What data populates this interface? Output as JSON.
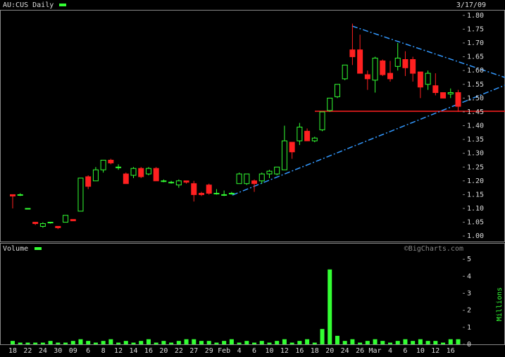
{
  "chart_data": [
    {
      "type": "candlestick",
      "title": "AU:CUS Daily",
      "subtitle": "3/17/09",
      "up_color": "#33ff33",
      "down_color": "#ff2020",
      "ylim": [
        0.98,
        1.82
      ],
      "yticks": [
        {
          "value": 1.0,
          "label": "1.00"
        },
        {
          "value": 1.05,
          "label": "1.05"
        },
        {
          "value": 1.1,
          "label": "1.10"
        },
        {
          "value": 1.15,
          "label": "1.15"
        },
        {
          "value": 1.2,
          "label": "1.20"
        },
        {
          "value": 1.25,
          "label": "1.25"
        },
        {
          "value": 1.3,
          "label": "1.30"
        },
        {
          "value": 1.35,
          "label": "1.35"
        },
        {
          "value": 1.4,
          "label": "1.40"
        },
        {
          "value": 1.45,
          "label": "1.45"
        },
        {
          "value": 1.5,
          "label": "1.50"
        },
        {
          "value": 1.55,
          "label": "1.55"
        },
        {
          "value": 1.6,
          "label": "1.60"
        },
        {
          "value": 1.65,
          "label": "1.65"
        },
        {
          "value": 1.7,
          "label": "1.70"
        },
        {
          "value": 1.75,
          "label": "1.75"
        },
        {
          "value": 1.8,
          "label": "1.80"
        }
      ],
      "open": [
        1.15,
        1.15,
        1.1,
        1.05,
        1.035,
        1.05,
        1.035,
        1.05,
        1.06,
        1.09,
        1.215,
        1.2,
        1.24,
        1.275,
        1.25,
        1.225,
        1.22,
        1.245,
        1.225,
        1.245,
        1.2,
        1.195,
        1.185,
        1.2,
        1.19,
        1.155,
        1.185,
        1.155,
        1.15,
        1.155,
        1.19,
        1.19,
        1.2,
        1.2,
        1.225,
        1.225,
        1.24,
        1.34,
        1.345,
        1.38,
        1.345,
        1.385,
        1.455,
        1.505,
        1.57,
        1.675,
        1.675,
        1.585,
        1.565,
        1.635,
        1.59,
        1.615,
        1.64,
        1.64,
        1.595,
        1.55,
        1.545,
        1.52,
        1.515,
        1.52
      ],
      "high": [
        1.15,
        1.155,
        1.1,
        1.05,
        1.05,
        1.05,
        1.035,
        1.075,
        1.06,
        1.21,
        1.22,
        1.25,
        1.275,
        1.28,
        1.26,
        1.23,
        1.25,
        1.25,
        1.25,
        1.25,
        1.205,
        1.2,
        1.205,
        1.2,
        1.2,
        1.16,
        1.19,
        1.17,
        1.165,
        1.16,
        1.23,
        1.225,
        1.205,
        1.23,
        1.24,
        1.25,
        1.4,
        1.34,
        1.41,
        1.39,
        1.36,
        1.45,
        1.5,
        1.55,
        1.62,
        1.77,
        1.73,
        1.6,
        1.65,
        1.64,
        1.635,
        1.7,
        1.67,
        1.65,
        1.595,
        1.6,
        1.59,
        1.52,
        1.535,
        1.53
      ],
      "low": [
        1.1,
        1.145,
        1.1,
        1.04,
        1.03,
        1.045,
        1.025,
        1.05,
        1.055,
        1.09,
        1.17,
        1.2,
        1.23,
        1.26,
        1.24,
        1.19,
        1.21,
        1.21,
        1.22,
        1.2,
        1.195,
        1.19,
        1.175,
        1.19,
        1.125,
        1.145,
        1.15,
        1.15,
        1.145,
        1.15,
        1.19,
        1.185,
        1.16,
        1.19,
        1.21,
        1.22,
        1.24,
        1.28,
        1.33,
        1.345,
        1.34,
        1.38,
        1.45,
        1.5,
        1.565,
        1.62,
        1.59,
        1.53,
        1.52,
        1.58,
        1.56,
        1.6,
        1.58,
        1.56,
        1.5,
        1.53,
        1.51,
        1.5,
        1.5,
        1.45
      ],
      "close": [
        1.145,
        1.15,
        1.1,
        1.045,
        1.045,
        1.05,
        1.03,
        1.075,
        1.055,
        1.21,
        1.18,
        1.24,
        1.275,
        1.265,
        1.25,
        1.19,
        1.245,
        1.215,
        1.245,
        1.2,
        1.2,
        1.195,
        1.2,
        1.195,
        1.15,
        1.15,
        1.155,
        1.155,
        1.15,
        1.155,
        1.225,
        1.225,
        1.19,
        1.225,
        1.235,
        1.25,
        1.345,
        1.305,
        1.395,
        1.345,
        1.355,
        1.45,
        1.5,
        1.55,
        1.62,
        1.65,
        1.59,
        1.57,
        1.645,
        1.585,
        1.57,
        1.645,
        1.61,
        1.59,
        1.54,
        1.59,
        1.52,
        1.5,
        1.52,
        1.47
      ],
      "watermark": "©BigCharts.com"
    },
    {
      "type": "bar",
      "title": "Volume",
      "y_label": "Millions",
      "color": "#33ff33",
      "categories": [
        "18",
        null,
        "22",
        null,
        "24",
        null,
        "30",
        null,
        "09",
        null,
        "6",
        null,
        "8",
        null,
        "12",
        null,
        "14",
        null,
        "16",
        null,
        "20",
        null,
        "22",
        null,
        "27",
        null,
        "29",
        null,
        "Feb",
        null,
        "4",
        null,
        "6",
        null,
        "10",
        null,
        "12",
        null,
        "16",
        null,
        "18",
        null,
        "20",
        null,
        "24",
        null,
        "26",
        null,
        "Mar",
        null,
        "4",
        null,
        "6",
        null,
        "10",
        null,
        "12",
        null,
        "16",
        null
      ],
      "values": [
        0.2,
        0.1,
        0.1,
        0.1,
        0.1,
        0.2,
        0.1,
        0.1,
        0.2,
        0.3,
        0.2,
        0.1,
        0.2,
        0.3,
        0.1,
        0.2,
        0.1,
        0.2,
        0.3,
        0.1,
        0.2,
        0.1,
        0.2,
        0.3,
        0.3,
        0.2,
        0.2,
        0.1,
        0.2,
        0.3,
        0.1,
        0.2,
        0.1,
        0.2,
        0.1,
        0.2,
        0.3,
        0.1,
        0.2,
        0.3,
        0.1,
        0.9,
        4.4,
        0.5,
        0.2,
        0.3,
        0.1,
        0.2,
        0.3,
        0.2,
        0.1,
        0.2,
        0.3,
        0.2,
        0.3,
        0.2,
        0.2,
        0.1,
        0.3,
        0.3
      ],
      "ylim": [
        0,
        6
      ],
      "yticks": [
        0,
        1,
        2,
        3,
        4,
        5
      ]
    }
  ]
}
